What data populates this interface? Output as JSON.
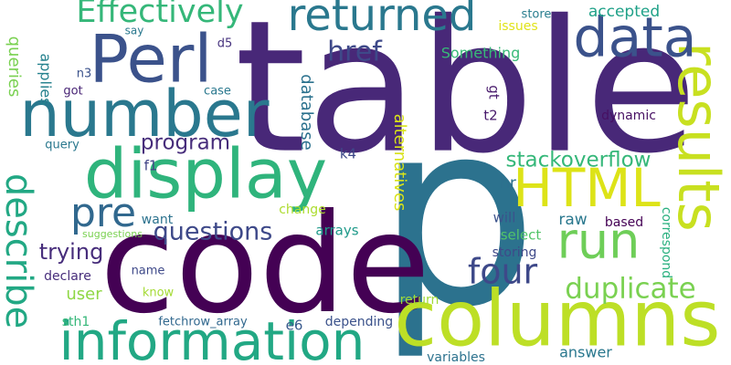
{
  "words": [
    {
      "text": "table",
      "color": "#482878"
    },
    {
      "text": "p",
      "color": "#2c728e"
    },
    {
      "text": "code",
      "color": "#440154"
    },
    {
      "text": "columns",
      "color": "#bddf26"
    },
    {
      "text": "information",
      "color": "#22a884"
    },
    {
      "text": "Perl",
      "color": "#3b528b"
    },
    {
      "text": "display",
      "color": "#2fb47c"
    },
    {
      "text": "number",
      "color": "#2a788e"
    },
    {
      "text": "results",
      "color": "#c8e020"
    },
    {
      "text": "data",
      "color": "#3b528b"
    },
    {
      "text": "returned",
      "color": "#2a788e"
    },
    {
      "text": "HTML",
      "color": "#dde318"
    },
    {
      "text": "run",
      "color": "#6ece58"
    },
    {
      "text": "describe",
      "color": "#22a884"
    },
    {
      "text": "Effectively",
      "color": "#35b779"
    },
    {
      "text": "pre",
      "color": "#31688e"
    },
    {
      "text": "four",
      "color": "#3e4989"
    },
    {
      "text": "questions",
      "color": "#3e4989"
    },
    {
      "text": "duplicate",
      "color": "#7ad151"
    },
    {
      "text": "href",
      "color": "#3e4989"
    },
    {
      "text": "stackoverflow",
      "color": "#35b779"
    },
    {
      "text": "program",
      "color": "#472d7b"
    },
    {
      "text": "alternatives",
      "color": "#d8e219"
    },
    {
      "text": "database",
      "color": "#2c728e"
    },
    {
      "text": "accepted",
      "color": "#1fa188"
    },
    {
      "text": "trying",
      "color": "#472d7b"
    },
    {
      "text": "queries",
      "color": "#7ad151"
    },
    {
      "text": "applies",
      "color": "#26828e"
    },
    {
      "text": "correspond",
      "color": "#2ab07f"
    },
    {
      "text": "Something",
      "color": "#38b977"
    },
    {
      "text": "user",
      "color": "#8fd744"
    },
    {
      "text": "raw",
      "color": "#2a788e"
    },
    {
      "text": "store",
      "color": "#287d8e"
    },
    {
      "text": "issues",
      "color": "#e0e318"
    },
    {
      "text": "gt",
      "color": "#481a6c"
    },
    {
      "text": "t2",
      "color": "#481a6c"
    },
    {
      "text": "dynamic",
      "color": "#471063"
    },
    {
      "text": "k4",
      "color": "#3e4989"
    },
    {
      "text": "hr",
      "color": "#2d708e"
    },
    {
      "text": "select",
      "color": "#52c569"
    },
    {
      "text": "will",
      "color": "#3b528b"
    },
    {
      "text": "based",
      "color": "#440154"
    },
    {
      "text": "want",
      "color": "#2c728e"
    },
    {
      "text": "arrays",
      "color": "#1f9a8a"
    },
    {
      "text": "change",
      "color": "#addc30"
    },
    {
      "text": "storing",
      "color": "#3e4989"
    },
    {
      "text": "return",
      "color": "#a0da39"
    },
    {
      "text": "answer",
      "color": "#2a788e"
    },
    {
      "text": "variables",
      "color": "#2c728e"
    },
    {
      "text": "depending",
      "color": "#3b528b"
    },
    {
      "text": "fetchrow_array",
      "color": "#31688e"
    },
    {
      "text": "sth1",
      "color": "#35b779"
    },
    {
      "text": "e6",
      "color": "#38598c"
    },
    {
      "text": "name",
      "color": "#3e4989"
    },
    {
      "text": "know",
      "color": "#a5db36"
    },
    {
      "text": "declare",
      "color": "#472d7b"
    },
    {
      "text": "suggestions",
      "color": "#7ad151"
    },
    {
      "text": "f1",
      "color": "#414487"
    },
    {
      "text": "query",
      "color": "#2a788e"
    },
    {
      "text": "case",
      "color": "#2a788e"
    },
    {
      "text": "got",
      "color": "#482475"
    },
    {
      "text": "n3",
      "color": "#3b528b"
    },
    {
      "text": "d5",
      "color": "#46327e"
    },
    {
      "text": "say",
      "color": "#2a788e"
    }
  ]
}
